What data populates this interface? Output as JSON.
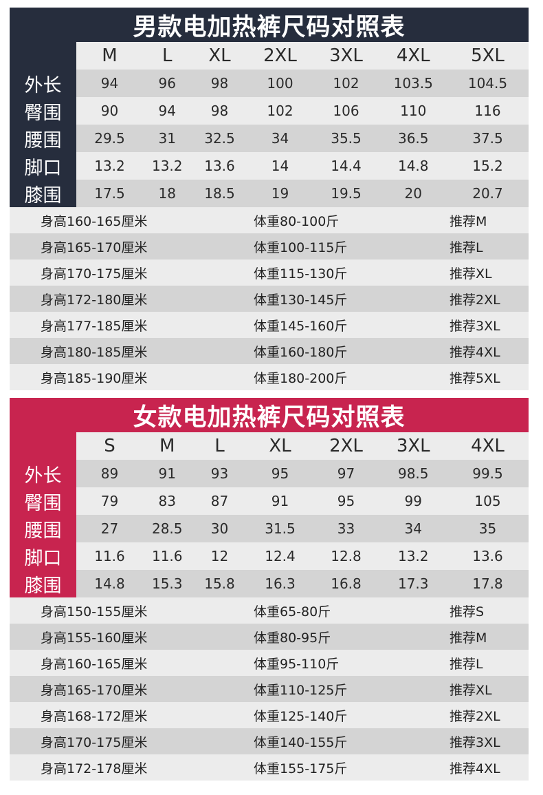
{
  "men": {
    "title": "男款电加热裤尺码对照表",
    "sizes": [
      "M",
      "L",
      "XL",
      "2XL",
      "3XL",
      "4XL",
      "5XL"
    ],
    "rows": [
      {
        "label": "外长",
        "values": [
          "94",
          "96",
          "98",
          "100",
          "102",
          "103.5",
          "104.5"
        ]
      },
      {
        "label": "臀围",
        "values": [
          "90",
          "94",
          "98",
          "102",
          "106",
          "110",
          "116"
        ]
      },
      {
        "label": "腰围",
        "values": [
          "29.5",
          "31",
          "32.5",
          "34",
          "35.5",
          "36.5",
          "37.5"
        ]
      },
      {
        "label": "脚口",
        "values": [
          "13.2",
          "13.2",
          "13.6",
          "14",
          "14.4",
          "14.8",
          "15.2"
        ]
      },
      {
        "label": "膝围",
        "values": [
          "17.5",
          "18",
          "18.5",
          "19",
          "19.5",
          "20",
          "20.7"
        ]
      }
    ],
    "recs": [
      {
        "height": "身高160-165厘米",
        "weight": "体重80-100斤",
        "rec": "推荐M"
      },
      {
        "height": "身高165-170厘米",
        "weight": "体重100-115斤",
        "rec": "推荐L"
      },
      {
        "height": "身高170-175厘米",
        "weight": "体重115-130斤",
        "rec": "推荐XL"
      },
      {
        "height": "身高172-180厘米",
        "weight": "体重130-145斤",
        "rec": "推荐2XL"
      },
      {
        "height": "身高177-185厘米",
        "weight": "体重145-160斤",
        "rec": "推荐3XL"
      },
      {
        "height": "身高180-185厘米",
        "weight": "体重160-180斤",
        "rec": "推荐4XL"
      },
      {
        "height": "身高185-190厘米",
        "weight": "体重180-200斤",
        "rec": "推荐5XL"
      }
    ]
  },
  "women": {
    "title": "女款电加热裤尺码对照表",
    "sizes": [
      "S",
      "M",
      "L",
      "XL",
      "2XL",
      "3XL",
      "4XL"
    ],
    "rows": [
      {
        "label": "外长",
        "values": [
          "89",
          "91",
          "93",
          "95",
          "97",
          "98.5",
          "99.5"
        ]
      },
      {
        "label": "臀围",
        "values": [
          "79",
          "83",
          "87",
          "91",
          "95",
          "99",
          "105"
        ]
      },
      {
        "label": "腰围",
        "values": [
          "27",
          "28.5",
          "30",
          "31.5",
          "33",
          "34",
          "35"
        ]
      },
      {
        "label": "脚口",
        "values": [
          "11.6",
          "11.6",
          "12",
          "12.4",
          "12.8",
          "13.2",
          "13.6"
        ]
      },
      {
        "label": "膝围",
        "values": [
          "14.8",
          "15.3",
          "15.8",
          "16.3",
          "16.8",
          "17.3",
          "17.8"
        ]
      }
    ],
    "recs": [
      {
        "height": "身高150-155厘米",
        "weight": "体重65-80斤",
        "rec": "推荐S"
      },
      {
        "height": "身高155-160厘米",
        "weight": "体重80-95斤",
        "rec": "推荐M"
      },
      {
        "height": "身高160-165厘米",
        "weight": "体重95-110斤",
        "rec": "推荐L"
      },
      {
        "height": "身高165-170厘米",
        "weight": "体重110-125斤",
        "rec": "推荐XL"
      },
      {
        "height": "身高168-172厘米",
        "weight": "体重125-140斤",
        "rec": "推荐2XL"
      },
      {
        "height": "身高170-175厘米",
        "weight": "体重140-155斤",
        "rec": "推荐3XL"
      },
      {
        "height": "身高172-178厘米",
        "weight": "体重155-175斤",
        "rec": "推荐4XL"
      }
    ]
  }
}
